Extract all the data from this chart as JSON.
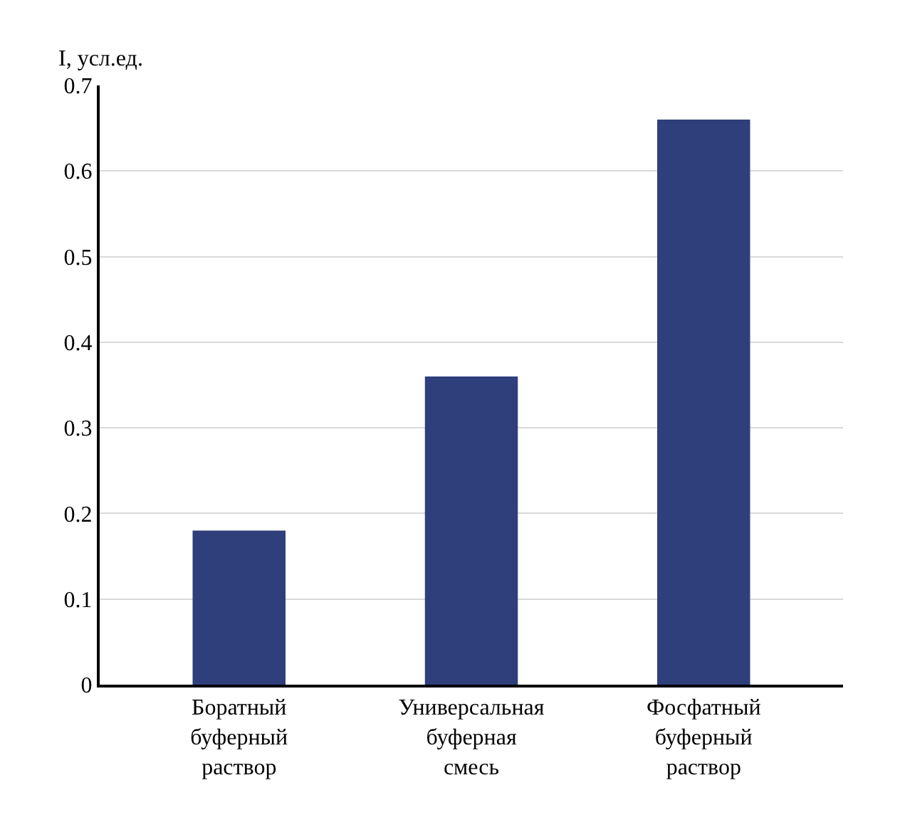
{
  "chart_data": {
    "type": "bar",
    "ylabel": "I, усл.ед.",
    "categories": [
      "Боратный буферный раствор",
      "Универсальная буферная смесь",
      "Фосфатный буферный раствор"
    ],
    "values": [
      0.18,
      0.36,
      0.66
    ],
    "color": "#2f3f7c",
    "ylim": [
      0,
      0.7
    ],
    "yticks": [
      0,
      0.1,
      0.2,
      0.3,
      0.4,
      0.5,
      0.6,
      0.7
    ],
    "grid": "y"
  }
}
